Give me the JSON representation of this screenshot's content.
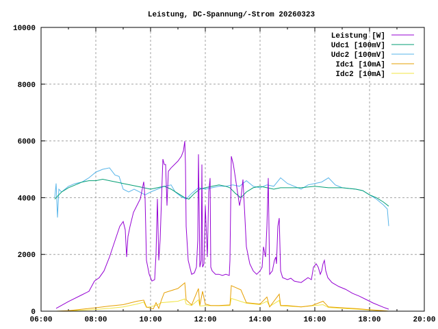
{
  "chart_data": {
    "type": "line",
    "title": "Leistung, DC-Spannung/-Strom 20260323",
    "xlabel": "",
    "ylabel": "",
    "xlim": [
      6,
      20
    ],
    "ylim": [
      0,
      10000
    ],
    "grid": true,
    "legend_position": "top-right",
    "x_ticks": [
      {
        "value": 6,
        "label": "06:00"
      },
      {
        "value": 8,
        "label": "08:00"
      },
      {
        "value": 10,
        "label": "10:00"
      },
      {
        "value": 12,
        "label": "12:00"
      },
      {
        "value": 14,
        "label": "14:00"
      },
      {
        "value": 16,
        "label": "16:00"
      },
      {
        "value": 18,
        "label": "18:00"
      },
      {
        "value": 20,
        "label": "20:00"
      }
    ],
    "y_ticks": [
      {
        "value": 0,
        "label": "0"
      },
      {
        "value": 2000,
        "label": "2000"
      },
      {
        "value": 4000,
        "label": "4000"
      },
      {
        "value": 6000,
        "label": "6000"
      },
      {
        "value": 8000,
        "label": "8000"
      },
      {
        "value": 10000,
        "label": "10000"
      }
    ],
    "series": [
      {
        "name": "Leistung [W]",
        "color": "#9400d3",
        "points": [
          [
            6.55,
            100
          ],
          [
            7.0,
            340
          ],
          [
            7.5,
            580
          ],
          [
            7.75,
            700
          ],
          [
            7.95,
            1060
          ],
          [
            8.125,
            1180
          ],
          [
            8.3,
            1420
          ],
          [
            8.5,
            1910
          ],
          [
            8.625,
            2270
          ],
          [
            8.75,
            2630
          ],
          [
            8.875,
            2990
          ],
          [
            9.0,
            3160
          ],
          [
            9.075,
            2870
          ],
          [
            9.125,
            1910
          ],
          [
            9.175,
            2630
          ],
          [
            9.25,
            2990
          ],
          [
            9.375,
            3480
          ],
          [
            9.5,
            3720
          ],
          [
            9.625,
            3960
          ],
          [
            9.7,
            4320
          ],
          [
            9.75,
            4560
          ],
          [
            9.8,
            3960
          ],
          [
            9.85,
            1790
          ],
          [
            9.95,
            1300
          ],
          [
            10.05,
            1060
          ],
          [
            10.15,
            1110
          ],
          [
            10.2,
            2030
          ],
          [
            10.25,
            3960
          ],
          [
            10.3,
            1790
          ],
          [
            10.35,
            2510
          ],
          [
            10.4,
            3960
          ],
          [
            10.45,
            5360
          ],
          [
            10.5,
            5170
          ],
          [
            10.55,
            5170
          ],
          [
            10.6,
            3720
          ],
          [
            10.65,
            4930
          ],
          [
            10.75,
            5050
          ],
          [
            10.875,
            5170
          ],
          [
            11.0,
            5290
          ],
          [
            11.125,
            5460
          ],
          [
            11.2,
            5650
          ],
          [
            11.25,
            5990
          ],
          [
            11.275,
            5170
          ],
          [
            11.3,
            2990
          ],
          [
            11.375,
            1790
          ],
          [
            11.5,
            1300
          ],
          [
            11.6,
            1350
          ],
          [
            11.675,
            1550
          ],
          [
            11.725,
            2510
          ],
          [
            11.75,
            5530
          ],
          [
            11.775,
            3720
          ],
          [
            11.8,
            1550
          ],
          [
            11.85,
            1790
          ],
          [
            11.875,
            5170
          ],
          [
            11.9,
            1550
          ],
          [
            11.95,
            1670
          ],
          [
            12.0,
            3720
          ],
          [
            12.075,
            1910
          ],
          [
            12.125,
            4200
          ],
          [
            12.175,
            4690
          ],
          [
            12.2,
            1550
          ],
          [
            12.25,
            1420
          ],
          [
            12.375,
            1300
          ],
          [
            12.5,
            1300
          ],
          [
            12.625,
            1260
          ],
          [
            12.75,
            1300
          ],
          [
            12.875,
            1260
          ],
          [
            12.9,
            1790
          ],
          [
            12.95,
            5460
          ],
          [
            13.025,
            5170
          ],
          [
            13.1,
            4690
          ],
          [
            13.175,
            4200
          ],
          [
            13.25,
            3720
          ],
          [
            13.3,
            3960
          ],
          [
            13.375,
            4640
          ],
          [
            13.45,
            3240
          ],
          [
            13.5,
            2270
          ],
          [
            13.625,
            1670
          ],
          [
            13.75,
            1420
          ],
          [
            13.875,
            1300
          ],
          [
            14.0,
            1420
          ],
          [
            14.075,
            1550
          ],
          [
            14.125,
            2270
          ],
          [
            14.2,
            1910
          ],
          [
            14.25,
            2990
          ],
          [
            14.3,
            4690
          ],
          [
            14.35,
            1300
          ],
          [
            14.45,
            1420
          ],
          [
            14.525,
            1790
          ],
          [
            14.575,
            1910
          ],
          [
            14.6,
            1670
          ],
          [
            14.65,
            2990
          ],
          [
            14.7,
            3280
          ],
          [
            14.75,
            1420
          ],
          [
            14.825,
            1180
          ],
          [
            15.0,
            1110
          ],
          [
            15.125,
            1160
          ],
          [
            15.25,
            1060
          ],
          [
            15.5,
            1010
          ],
          [
            15.75,
            1180
          ],
          [
            15.875,
            1110
          ],
          [
            15.95,
            1550
          ],
          [
            16.05,
            1670
          ],
          [
            16.125,
            1550
          ],
          [
            16.2,
            1300
          ],
          [
            16.25,
            1420
          ],
          [
            16.3,
            1670
          ],
          [
            16.35,
            1790
          ],
          [
            16.4,
            1420
          ],
          [
            16.475,
            1180
          ],
          [
            16.625,
            1010
          ],
          [
            16.875,
            870
          ],
          [
            17.125,
            770
          ],
          [
            17.375,
            630
          ],
          [
            17.625,
            530
          ],
          [
            17.875,
            410
          ],
          [
            18.125,
            290
          ],
          [
            18.5,
            140
          ],
          [
            18.7,
            70
          ]
        ]
      },
      {
        "name": "Udc1 [100mV]",
        "color": "#009e73",
        "points": [
          [
            6.5,
            3950
          ],
          [
            6.6,
            4050
          ],
          [
            6.75,
            4200
          ],
          [
            7.0,
            4350
          ],
          [
            7.25,
            4450
          ],
          [
            7.5,
            4550
          ],
          [
            7.75,
            4600
          ],
          [
            8.0,
            4600
          ],
          [
            8.25,
            4650
          ],
          [
            8.5,
            4600
          ],
          [
            8.75,
            4550
          ],
          [
            9.0,
            4500
          ],
          [
            9.25,
            4450
          ],
          [
            9.5,
            4400
          ],
          [
            9.75,
            4350
          ],
          [
            10.0,
            4300
          ],
          [
            10.25,
            4350
          ],
          [
            10.5,
            4400
          ],
          [
            10.75,
            4300
          ],
          [
            11.0,
            4150
          ],
          [
            11.25,
            4000
          ],
          [
            11.4,
            3950
          ],
          [
            11.6,
            4150
          ],
          [
            11.8,
            4300
          ],
          [
            12.0,
            4350
          ],
          [
            12.25,
            4400
          ],
          [
            12.5,
            4450
          ],
          [
            12.75,
            4400
          ],
          [
            12.9,
            4350
          ],
          [
            13.1,
            4150
          ],
          [
            13.3,
            4000
          ],
          [
            13.5,
            4200
          ],
          [
            13.75,
            4350
          ],
          [
            14.0,
            4400
          ],
          [
            14.25,
            4350
          ],
          [
            14.5,
            4300
          ],
          [
            14.75,
            4350
          ],
          [
            15.0,
            4350
          ],
          [
            15.5,
            4350
          ],
          [
            16.0,
            4400
          ],
          [
            16.5,
            4350
          ],
          [
            17.0,
            4350
          ],
          [
            17.5,
            4300
          ],
          [
            17.75,
            4250
          ],
          [
            18.0,
            4100
          ],
          [
            18.25,
            4000
          ],
          [
            18.5,
            3850
          ],
          [
            18.7,
            3700
          ]
        ]
      },
      {
        "name": "Udc2 [100mV]",
        "color": "#56b4e9",
        "points": [
          [
            6.5,
            4000
          ],
          [
            6.55,
            4500
          ],
          [
            6.6,
            3300
          ],
          [
            6.65,
            4300
          ],
          [
            6.75,
            4200
          ],
          [
            7.0,
            4400
          ],
          [
            7.25,
            4500
          ],
          [
            7.5,
            4550
          ],
          [
            7.75,
            4700
          ],
          [
            8.0,
            4900
          ],
          [
            8.25,
            5000
          ],
          [
            8.5,
            5050
          ],
          [
            8.7,
            4800
          ],
          [
            8.85,
            4750
          ],
          [
            9.0,
            4300
          ],
          [
            9.2,
            4200
          ],
          [
            9.4,
            4300
          ],
          [
            9.6,
            4200
          ],
          [
            9.8,
            4100
          ],
          [
            10.0,
            4200
          ],
          [
            10.25,
            4300
          ],
          [
            10.5,
            4400
          ],
          [
            10.75,
            4450
          ],
          [
            10.9,
            4200
          ],
          [
            11.1,
            4050
          ],
          [
            11.3,
            3950
          ],
          [
            11.5,
            4150
          ],
          [
            11.75,
            4350
          ],
          [
            12.0,
            4300
          ],
          [
            12.25,
            4350
          ],
          [
            12.5,
            4400
          ],
          [
            12.75,
            4400
          ],
          [
            13.0,
            4450
          ],
          [
            13.25,
            4400
          ],
          [
            13.5,
            4600
          ],
          [
            13.75,
            4400
          ],
          [
            14.0,
            4350
          ],
          [
            14.25,
            4450
          ],
          [
            14.5,
            4400
          ],
          [
            14.75,
            4700
          ],
          [
            15.0,
            4500
          ],
          [
            15.25,
            4400
          ],
          [
            15.5,
            4300
          ],
          [
            15.75,
            4450
          ],
          [
            16.0,
            4500
          ],
          [
            16.25,
            4550
          ],
          [
            16.5,
            4700
          ],
          [
            16.75,
            4450
          ],
          [
            17.0,
            4350
          ],
          [
            17.5,
            4300
          ],
          [
            17.75,
            4250
          ],
          [
            18.0,
            4100
          ],
          [
            18.25,
            3950
          ],
          [
            18.5,
            3750
          ],
          [
            18.65,
            3600
          ],
          [
            18.7,
            3000
          ]
        ]
      },
      {
        "name": "Idc1 [10mA]",
        "color": "#e69f00",
        "points": [
          [
            6.55,
            0
          ],
          [
            7.0,
            20
          ],
          [
            8.0,
            120
          ],
          [
            8.5,
            180
          ],
          [
            9.0,
            230
          ],
          [
            9.5,
            350
          ],
          [
            9.75,
            390
          ],
          [
            9.85,
            150
          ],
          [
            10.1,
            80
          ],
          [
            10.2,
            300
          ],
          [
            10.3,
            100
          ],
          [
            10.4,
            400
          ],
          [
            10.5,
            650
          ],
          [
            11.0,
            800
          ],
          [
            11.25,
            1000
          ],
          [
            11.3,
            400
          ],
          [
            11.5,
            220
          ],
          [
            11.75,
            800
          ],
          [
            11.8,
            200
          ],
          [
            11.9,
            700
          ],
          [
            12.0,
            250
          ],
          [
            12.2,
            200
          ],
          [
            12.5,
            200
          ],
          [
            12.9,
            220
          ],
          [
            12.95,
            900
          ],
          [
            13.3,
            750
          ],
          [
            13.5,
            300
          ],
          [
            14.0,
            250
          ],
          [
            14.25,
            500
          ],
          [
            14.35,
            150
          ],
          [
            14.7,
            600
          ],
          [
            14.75,
            200
          ],
          [
            15.0,
            200
          ],
          [
            15.5,
            150
          ],
          [
            15.9,
            200
          ],
          [
            16.3,
            350
          ],
          [
            16.5,
            150
          ],
          [
            17.0,
            120
          ],
          [
            17.5,
            90
          ],
          [
            18.0,
            50
          ],
          [
            18.5,
            20
          ],
          [
            18.7,
            0
          ]
        ]
      },
      {
        "name": "Idc2 [10mA]",
        "color": "#f0e442",
        "points": [
          [
            6.55,
            0
          ],
          [
            7.0,
            10
          ],
          [
            8.0,
            60
          ],
          [
            8.5,
            100
          ],
          [
            9.0,
            150
          ],
          [
            9.5,
            250
          ],
          [
            9.75,
            320
          ],
          [
            9.85,
            130
          ],
          [
            10.2,
            200
          ],
          [
            10.4,
            300
          ],
          [
            11.0,
            350
          ],
          [
            11.25,
            430
          ],
          [
            11.3,
            250
          ],
          [
            11.5,
            200
          ],
          [
            11.75,
            400
          ],
          [
            11.8,
            180
          ],
          [
            12.0,
            200
          ],
          [
            12.5,
            190
          ],
          [
            12.9,
            200
          ],
          [
            12.95,
            450
          ],
          [
            13.5,
            280
          ],
          [
            14.0,
            230
          ],
          [
            14.25,
            350
          ],
          [
            14.35,
            170
          ],
          [
            14.7,
            380
          ],
          [
            14.75,
            190
          ],
          [
            15.5,
            150
          ],
          [
            16.3,
            230
          ],
          [
            16.5,
            130
          ],
          [
            17.0,
            100
          ],
          [
            18.0,
            40
          ],
          [
            18.7,
            0
          ]
        ]
      }
    ]
  }
}
